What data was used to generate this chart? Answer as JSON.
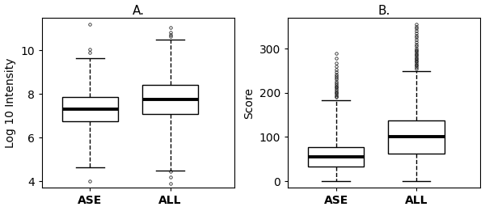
{
  "title_A": "A.",
  "title_B": "B.",
  "ylabel_A": "Log 10 Intensity",
  "ylabel_B": "Score",
  "categories": [
    "ASE",
    "ALL"
  ],
  "boxA_ASE": {
    "median": 7.3,
    "q1": 6.75,
    "q3": 7.85,
    "whislo": 4.65,
    "whishi": 9.65,
    "fliers_low": [
      4.0
    ],
    "fliers_high": [
      9.9,
      10.05,
      11.2
    ]
  },
  "boxA_ALL": {
    "median": 7.75,
    "q1": 7.1,
    "q3": 8.4,
    "whislo": 4.5,
    "whishi": 10.5,
    "fliers_low": [
      3.9,
      4.2,
      4.45
    ],
    "fliers_high": [
      10.65,
      10.72,
      10.82,
      11.05
    ]
  },
  "boxB_ASE": {
    "median": 55,
    "q1": 33,
    "q3": 78,
    "whislo": 0,
    "whishi": 183,
    "fliers_low": [],
    "fliers_high": [
      190,
      193,
      196,
      199,
      202,
      205,
      208,
      212,
      215,
      218,
      222,
      226,
      230,
      234,
      238,
      242,
      247,
      253,
      260,
      268,
      278,
      290
    ]
  },
  "boxB_ALL": {
    "median": 100,
    "q1": 62,
    "q3": 138,
    "whislo": 0,
    "whishi": 248,
    "fliers_low": [],
    "fliers_high": [
      255,
      258,
      261,
      264,
      267,
      270,
      273,
      276,
      279,
      282,
      285,
      288,
      291,
      294,
      297,
      300,
      305,
      310,
      315,
      320,
      325,
      330,
      335,
      340,
      345,
      350,
      355
    ]
  },
  "ylimA": [
    3.7,
    11.5
  ],
  "ylimB": [
    -15,
    370
  ],
  "yticks_A": [
    4,
    6,
    8,
    10
  ],
  "yticks_B": [
    0,
    100,
    200,
    300
  ],
  "box_width": 0.7,
  "linewidth": 1.0,
  "median_linewidth": 2.8,
  "flier_marker": "o",
  "flier_size": 2.5,
  "face_color": "white",
  "edge_color": "black",
  "bg_color": "white",
  "whisker_linestyle": "--",
  "title_fontsize": 11,
  "label_fontsize": 10,
  "tick_fontsize": 10
}
